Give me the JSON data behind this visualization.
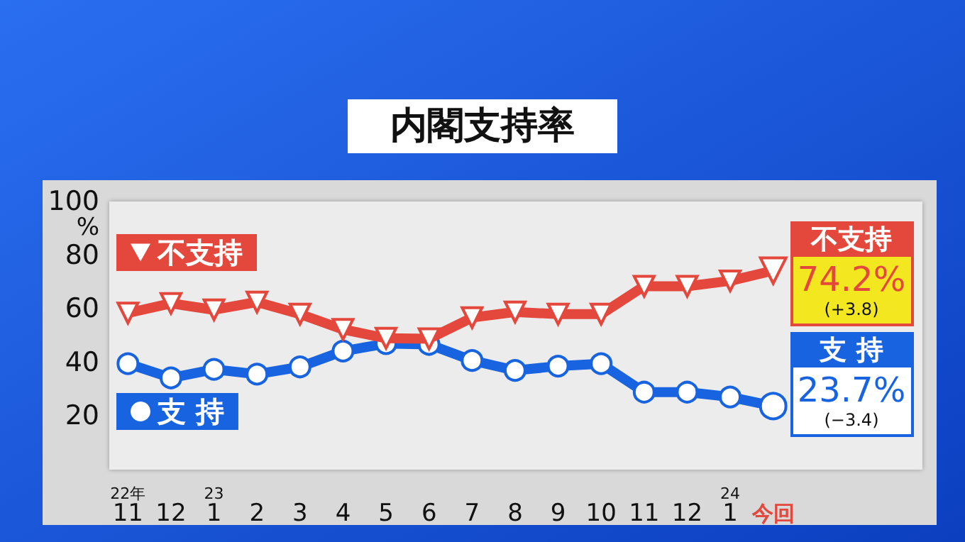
{
  "chart_data": {
    "type": "line",
    "title": "内閣支持率",
    "ylabel": "%",
    "categories": [
      "22年\n11",
      "12",
      "23\n1",
      "2",
      "3",
      "4",
      "5",
      "6",
      "7",
      "8",
      "9",
      "10",
      "11",
      "12",
      "24\n1",
      "今回"
    ],
    "series": [
      {
        "name": "不支持",
        "color": "#e4473b",
        "marker": "triangle",
        "values": [
          58.4,
          62,
          59.6,
          62.5,
          58,
          52.3,
          49,
          48.8,
          56.7,
          58.8,
          58,
          58,
          68.4,
          68.4,
          70.4,
          74.2
        ]
      },
      {
        "name": "支 持",
        "color": "#1763e0",
        "marker": "circle",
        "values": [
          39.5,
          34.2,
          37.4,
          35.6,
          38.3,
          44.2,
          47,
          46.7,
          40.7,
          37,
          38.6,
          39.5,
          28.9,
          28.9,
          27.1,
          23.7
        ]
      }
    ],
    "annotations": [
      "不支持",
      "74.2%",
      "(+3.8)",
      "支 持",
      "23.7%",
      "(−3.4)"
    ],
    "ylim": [
      0,
      100
    ],
    "yticks": [
      20,
      40,
      60,
      80,
      100
    ],
    "grid": false,
    "legend": "left"
  }
}
